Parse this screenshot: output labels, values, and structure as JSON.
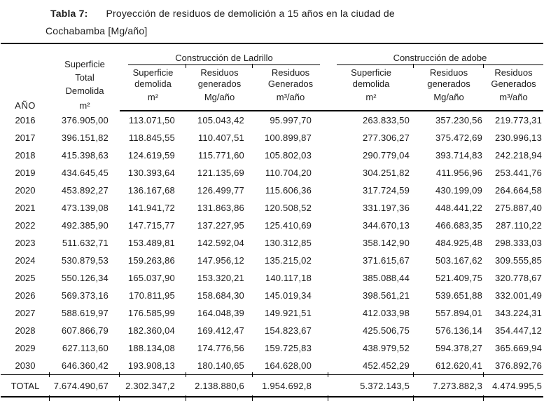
{
  "title": {
    "label": "Tabla 7:",
    "line1": "Proyección de residuos de demolición a 15 años en la ciudad de",
    "line2": "Cochabamba [Mg/año]"
  },
  "table": {
    "header": {
      "year": "AÑO",
      "total_surface": {
        "text": "Superficie\nTotal\nDemolida",
        "unit": "m²"
      },
      "groups": [
        {
          "label": "Construcción de Ladrillo",
          "columns": [
            {
              "name": "Superficie\ndemolida",
              "unit": "m²"
            },
            {
              "name": "Residuos\ngenerados",
              "unit": "Mg/año"
            },
            {
              "name": "Residuos\nGenerados",
              "unit": "m³/año"
            }
          ]
        },
        {
          "label": "Construcción de adobe",
          "columns": [
            {
              "name": "Superficie\ndemolida",
              "unit": "m²"
            },
            {
              "name": "Residuos\ngenerados",
              "unit": "Mg/año"
            },
            {
              "name": "Residuos\nGenerados",
              "unit": "m³/año"
            }
          ]
        }
      ]
    },
    "rows": [
      {
        "year": "2016",
        "values": [
          "376.905,00",
          "113.071,50",
          "105.043,42",
          "95.997,70",
          "263.833,50",
          "357.230,56",
          "219.773,31"
        ]
      },
      {
        "year": "2017",
        "values": [
          "396.151,82",
          "118.845,55",
          "110.407,51",
          "100.899,87",
          "277.306,27",
          "375.472,69",
          "230.996,13"
        ]
      },
      {
        "year": "2018",
        "values": [
          "415.398,63",
          "124.619,59",
          "115.771,60",
          "105.802,03",
          "290.779,04",
          "393.714,83",
          "242.218,94"
        ]
      },
      {
        "year": "2019",
        "values": [
          "434.645,45",
          "130.393,64",
          "121.135,69",
          "110.704,20",
          "304.251,82",
          "411.956,96",
          "253.441,76"
        ]
      },
      {
        "year": "2020",
        "values": [
          "453.892,27",
          "136.167,68",
          "126.499,77",
          "115.606,36",
          "317.724,59",
          "430.199,09",
          "264.664,58"
        ]
      },
      {
        "year": "2021",
        "values": [
          "473.139,08",
          "141.941,72",
          "131.863,86",
          "120.508,52",
          "331.197,36",
          "448.441,22",
          "275.887,40"
        ]
      },
      {
        "year": "2022",
        "values": [
          "492.385,90",
          "147.715,77",
          "137.227,95",
          "125.410,69",
          "344.670,13",
          "466.683,35",
          "287.110,22"
        ]
      },
      {
        "year": "2023",
        "values": [
          "511.632,71",
          "153.489,81",
          "142.592,04",
          "130.312,85",
          "358.142,90",
          "484.925,48",
          "298.333,03"
        ]
      },
      {
        "year": "2024",
        "values": [
          "530.879,53",
          "159.263,86",
          "147.956,12",
          "135.215,02",
          "371.615,67",
          "503.167,62",
          "309.555,85"
        ]
      },
      {
        "year": "2025",
        "values": [
          "550.126,34",
          "165.037,90",
          "153.320,21",
          "140.117,18",
          "385.088,44",
          "521.409,75",
          "320.778,67"
        ]
      },
      {
        "year": "2026",
        "values": [
          "569.373,16",
          "170.811,95",
          "158.684,30",
          "145.019,34",
          "398.561,21",
          "539.651,88",
          "332.001,49"
        ]
      },
      {
        "year": "2027",
        "values": [
          "588.619,97",
          "176.585,99",
          "164.048,39",
          "149.921,51",
          "412.033,98",
          "557.894,01",
          "343.224,31"
        ]
      },
      {
        "year": "2028",
        "values": [
          "607.866,79",
          "182.360,04",
          "169.412,47",
          "154.823,67",
          "425.506,75",
          "576.136,14",
          "354.447,12"
        ]
      },
      {
        "year": "2029",
        "values": [
          "627.113,60",
          "188.134,08",
          "174.776,56",
          "159.725,83",
          "438.979,52",
          "594.378,27",
          "365.669,94"
        ]
      },
      {
        "year": "2030",
        "values": [
          "646.360,42",
          "193.908,13",
          "180.140,65",
          "164.628,00",
          "452.452,29",
          "612.620,41",
          "376.892,76"
        ]
      }
    ],
    "total": {
      "year": "TOTAL",
      "values": [
        "7.674.490,67",
        "2.302.347,2",
        "2.138.880,6",
        "1.954.692,8",
        "5.372.143,5",
        "7.273.882,3",
        "4.474.995,5"
      ]
    }
  }
}
